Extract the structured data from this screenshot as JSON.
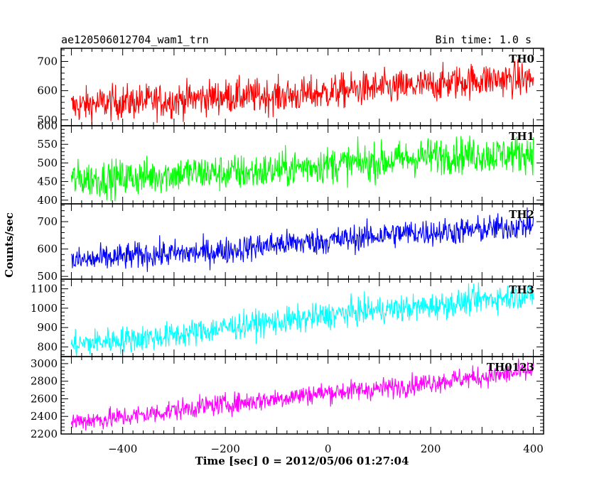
{
  "header": {
    "title": "ae120506012704_wam1_trn",
    "bin_time": "Bin time: 1.0 s"
  },
  "xaxis": {
    "label": "Time [sec] 0 = 2012/05/06 01:27:04",
    "ticks": [
      -400,
      -200,
      0,
      200,
      400
    ],
    "range": [
      -520,
      420
    ]
  },
  "yaxis": {
    "label": "Counts/sec"
  },
  "chart_data": {
    "type": "line",
    "title": "ae120506012704_wam1_trn",
    "xlabel": "Time [sec] 0 = 2012/05/06 01:27:04",
    "ylabel": "Counts/sec",
    "xlim": [
      -520,
      420
    ],
    "x_start": -500,
    "x_end": 400,
    "x_step": 1,
    "series": [
      {
        "name": "TH0",
        "color": "#ff0000",
        "ylim": [
          480,
          745
        ],
        "yticks": [
          500,
          600,
          700
        ],
        "trend_start": 545,
        "trend_end": 640,
        "noise": 30
      },
      {
        "name": "TH1",
        "color": "#00ff00",
        "ylim": [
          390,
          600
        ],
        "yticks": [
          400,
          450,
          500,
          550,
          600
        ],
        "trend_start": 450,
        "trend_end": 530,
        "noise": 25
      },
      {
        "name": "TH2",
        "color": "#0000ff",
        "ylim": [
          490,
          765
        ],
        "yticks": [
          500,
          600,
          700
        ],
        "trend_start": 555,
        "trend_end": 690,
        "noise": 25
      },
      {
        "name": "TH3",
        "color": "#00ffff",
        "ylim": [
          750,
          1150
        ],
        "yticks": [
          800,
          900,
          1000,
          1100
        ],
        "trend_start": 810,
        "trend_end": 1075,
        "noise": 35
      },
      {
        "name": "TH0123",
        "color": "#ff00ff",
        "ylim": [
          2200,
          3080
        ],
        "yticks": [
          2200,
          2400,
          2600,
          2800,
          3000
        ],
        "trend_start": 2340,
        "trend_end": 2920,
        "noise": 60
      }
    ]
  }
}
